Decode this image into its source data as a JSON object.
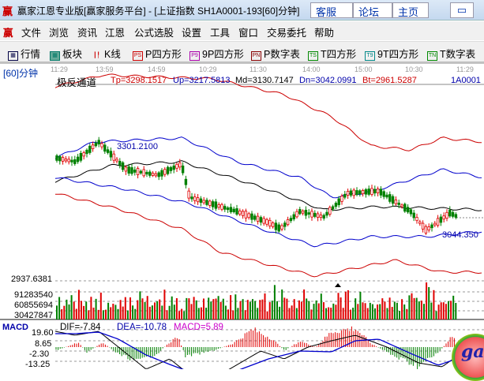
{
  "window": {
    "logo": "赢",
    "title": "赢家江恩专业版[赢家服务平台] - [上证指数  SH1A0001-193[60]分钟]",
    "buttons": [
      "客服",
      "论坛",
      "主页"
    ]
  },
  "menu": {
    "logo": "赢",
    "items": [
      "文件",
      "浏览",
      "资讯",
      "江恩",
      "公式选股",
      "设置",
      "工具",
      "窗口",
      "交易委托",
      "帮助"
    ]
  },
  "toolbar": [
    {
      "icon": "table-icon",
      "label": "行情"
    },
    {
      "icon": "blocks-icon",
      "label": "板块"
    },
    {
      "icon": "candlestick-icon",
      "label": "K线"
    },
    {
      "icon": "PS",
      "label": "P四方形"
    },
    {
      "icon": "P9",
      "label": "9P四方形"
    },
    {
      "icon": "PN",
      "label": "P数字表"
    },
    {
      "icon": "TS",
      "label": "T四方形"
    },
    {
      "icon": "T9",
      "label": "9T四方形"
    },
    {
      "icon": "TN",
      "label": "T数字表"
    }
  ],
  "chart": {
    "period": "[60]分钟",
    "time_labels": [
      "11:29",
      "13:59",
      "14:59",
      "10:29",
      "11:30",
      "14:00",
      "15:00",
      "10:30",
      "11:29"
    ],
    "indicator": {
      "name": "极反通道",
      "tp": "Tp=3298.1517",
      "up": "Up=3217.5813",
      "md": "Md=3130.7147",
      "dn": "Dn=3042.0991",
      "bt": "Bt=2961.5287"
    },
    "code": "1A0001",
    "high_label": "3301.2100",
    "low_label": "3044.350",
    "price_axis_label": "2937.6381",
    "volume_labels": [
      "91283540",
      "60855694",
      "30427847"
    ],
    "macd": {
      "label": "MACD",
      "dif": "DIF=-7.84",
      "dea": "DEA=-10.78",
      "macd": "MACD=5.89",
      "axis": [
        "19.60",
        "8.65",
        "-2.30",
        "-13.25"
      ]
    },
    "colors": {
      "up": "#e00000",
      "down": "#008000",
      "band_outer": "#cc0000",
      "band_inner": "#0000cc",
      "mid": "#000000"
    }
  }
}
